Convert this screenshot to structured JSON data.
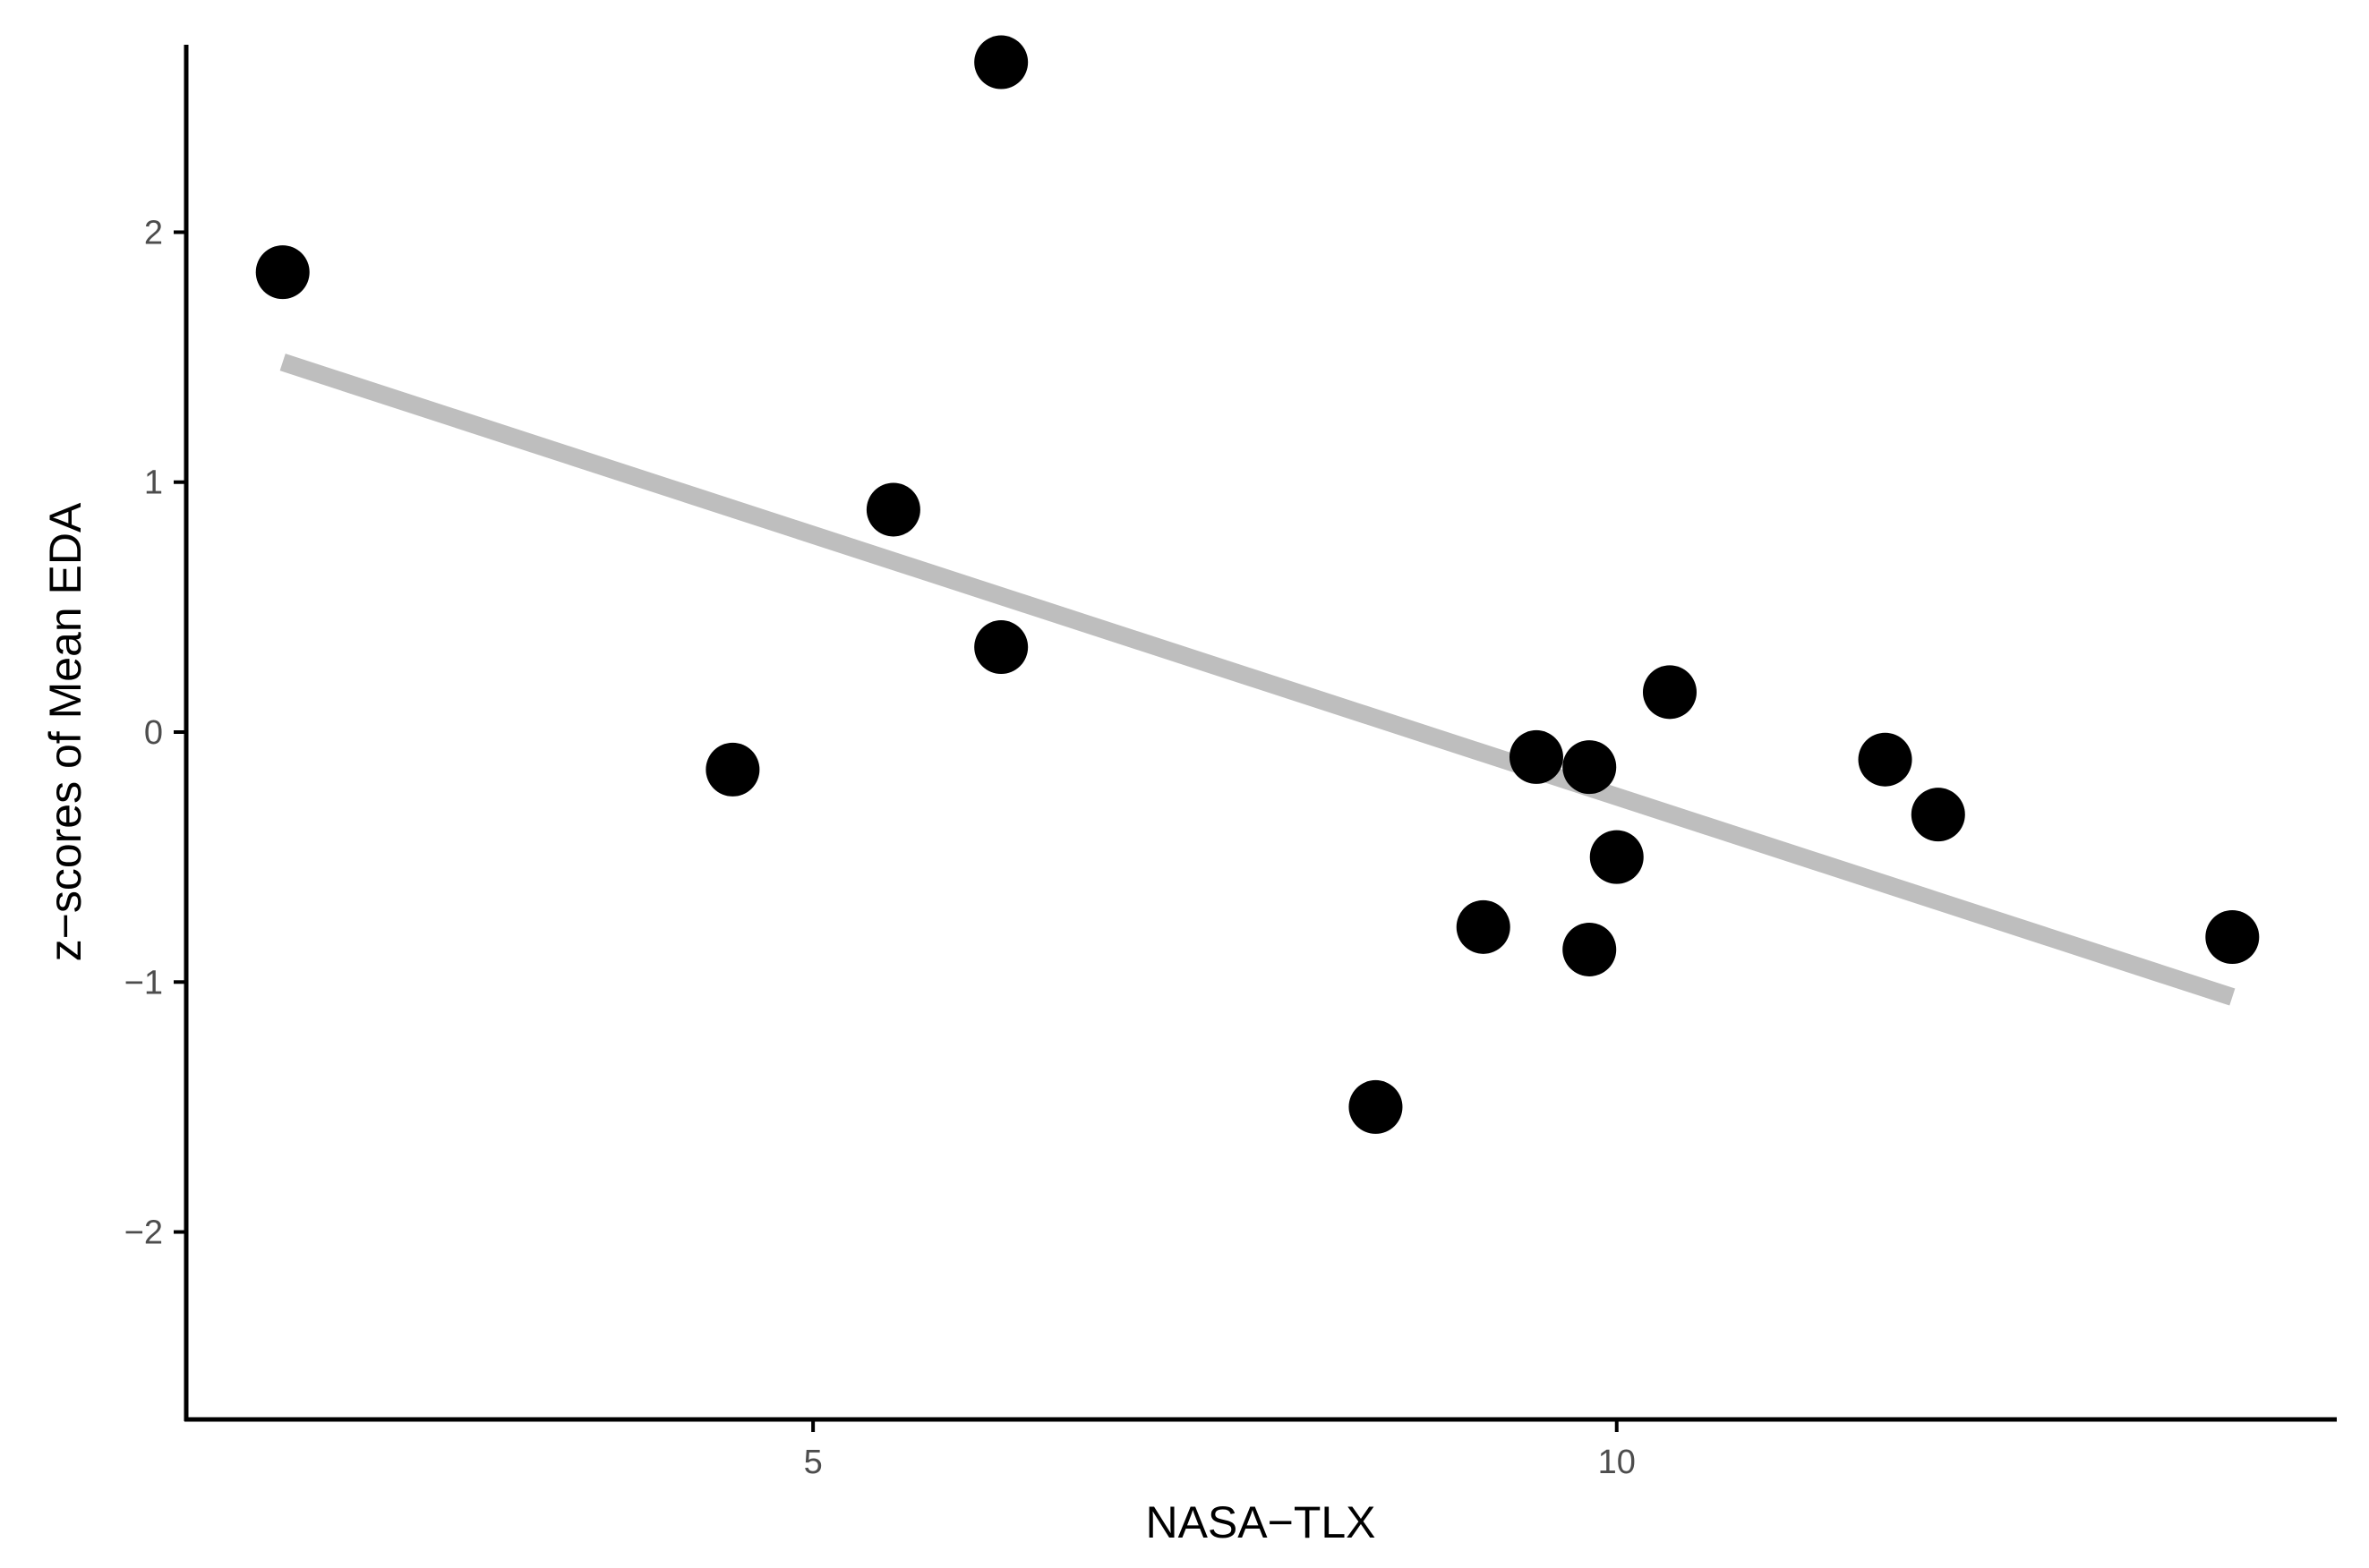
{
  "chart_data": {
    "type": "scatter",
    "title": "",
    "xlabel": "NASA−TLX",
    "ylabel": "z−scores of Mean EDA",
    "xlim": [
      1.1,
      14.48
    ],
    "ylim": [
      -2.75,
      2.75
    ],
    "x_ticks": [
      {
        "value": 5,
        "label": "5"
      },
      {
        "value": 10,
        "label": "10"
      }
    ],
    "y_ticks": [
      {
        "value": -2,
        "label": "−2"
      },
      {
        "value": -1,
        "label": "−1"
      },
      {
        "value": 0,
        "label": "0"
      },
      {
        "value": 1,
        "label": "1"
      },
      {
        "value": 2,
        "label": "2"
      }
    ],
    "grid": false,
    "legend": "none",
    "series": [
      {
        "type": "scatter",
        "points": [
          {
            "x": 1.7,
            "y": 1.84
          },
          {
            "x": 4.5,
            "y": -0.15
          },
          {
            "x": 5.5,
            "y": 0.89
          },
          {
            "x": 6.17,
            "y": 2.68
          },
          {
            "x": 6.17,
            "y": 0.34
          },
          {
            "x": 8.5,
            "y": -1.5
          },
          {
            "x": 9.17,
            "y": -0.78
          },
          {
            "x": 9.5,
            "y": -0.1
          },
          {
            "x": 9.83,
            "y": -0.87
          },
          {
            "x": 9.83,
            "y": -0.14
          },
          {
            "x": 10.0,
            "y": -0.5
          },
          {
            "x": 10.33,
            "y": 0.16
          },
          {
            "x": 11.67,
            "y": -0.11
          },
          {
            "x": 12.0,
            "y": -0.33
          },
          {
            "x": 13.83,
            "y": -0.82
          }
        ]
      },
      {
        "type": "line",
        "kind": "linear-fit",
        "points": [
          {
            "x": 1.7,
            "y": 1.48
          },
          {
            "x": 13.83,
            "y": -1.06
          }
        ]
      }
    ],
    "colors": {
      "points": "#000000",
      "fit_line": "#bebebe",
      "axis": "#000000",
      "tick_label": "#4d4d4d",
      "background": "#ffffff"
    }
  }
}
